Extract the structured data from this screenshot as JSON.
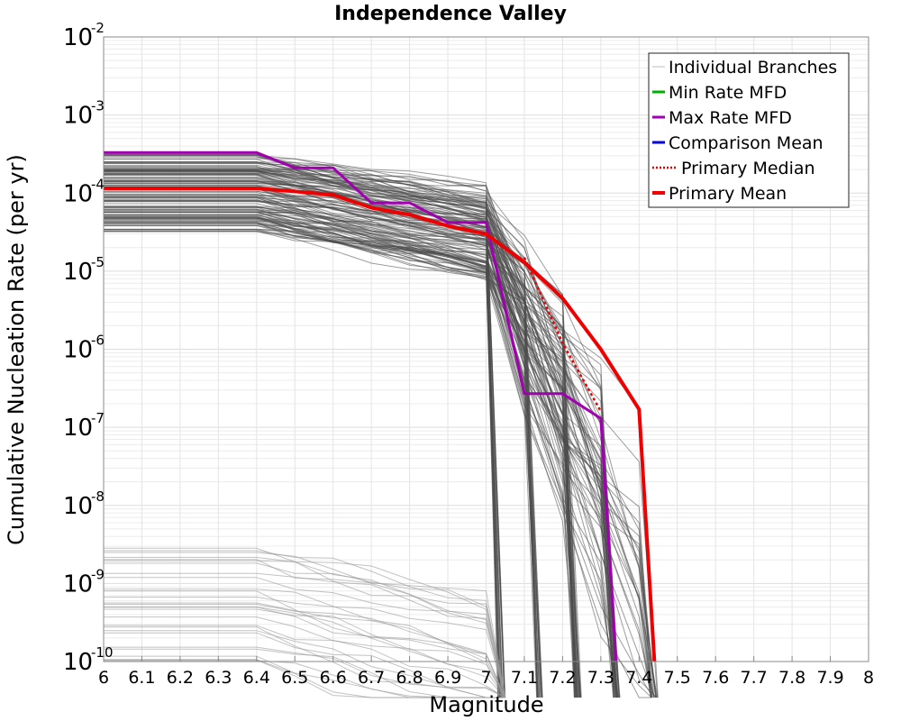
{
  "chart_data": {
    "type": "line",
    "title": "Independence Valley",
    "xlabel": "Magnitude",
    "ylabel": "Cumulative Nucleation Rate (per yr)",
    "xlim": [
      6,
      8
    ],
    "ylim": [
      1e-10,
      0.01
    ],
    "yscale": "log",
    "grid": true,
    "legend_position": "top-right",
    "x_ticks": [
      "6",
      "6.1",
      "6.2",
      "6.3",
      "6.4",
      "6.5",
      "6.6",
      "6.7",
      "6.8",
      "6.9",
      "7",
      "7.1",
      "7.2",
      "7.3",
      "7.4",
      "7.5",
      "7.6",
      "7.7",
      "7.8",
      "7.9",
      "8"
    ],
    "y_ticks": [
      {
        "base": "10",
        "exp": "-10",
        "value": 1e-10
      },
      {
        "base": "10",
        "exp": "-9",
        "value": 1e-09
      },
      {
        "base": "10",
        "exp": "-8",
        "value": 1e-08
      },
      {
        "base": "10",
        "exp": "-7",
        "value": 1e-07
      },
      {
        "base": "10",
        "exp": "-6",
        "value": 1e-06
      },
      {
        "base": "10",
        "exp": "-5",
        "value": 1e-05
      },
      {
        "base": "10",
        "exp": "-4",
        "value": 0.0001
      },
      {
        "base": "10",
        "exp": "-3",
        "value": 0.001
      },
      {
        "base": "10",
        "exp": "-2",
        "value": 0.01
      }
    ],
    "series": [
      {
        "name": "Individual Branches",
        "color": "#4d4d4d",
        "style": "thin",
        "note_values": "representative sample of many overlapping branch curves"
      },
      {
        "name": "Min Rate MFD",
        "color": "#00b000",
        "x": [],
        "y": []
      },
      {
        "name": "Max Rate MFD",
        "color": "#a000b0",
        "x": [
          6.0,
          6.4,
          6.5,
          6.6,
          6.7,
          6.8,
          6.9,
          7.0,
          7.1,
          7.2,
          7.3,
          7.34
        ],
        "y": [
          0.00033,
          0.00033,
          0.00021,
          0.00021,
          7.5e-05,
          7.5e-05,
          4.2e-05,
          4.2e-05,
          2.7e-07,
          2.7e-07,
          1.3e-07,
          1e-10
        ]
      },
      {
        "name": "Comparison Mean",
        "color": "#0000dd",
        "x": [],
        "y": []
      },
      {
        "name": "Primary Median",
        "color": "#ee0000",
        "dashed": true,
        "x": [
          7.1,
          7.2,
          7.3
        ],
        "y": [
          1.5e-05,
          1.2e-06,
          1.6e-07
        ]
      },
      {
        "name": "Primary Mean",
        "color": "#ee0000",
        "x": [
          6.0,
          6.4,
          6.5,
          6.6,
          6.7,
          6.8,
          6.9,
          7.0,
          7.1,
          7.2,
          7.3,
          7.4,
          7.44
        ],
        "y": [
          0.000115,
          0.000115,
          0.000105,
          9.5e-05,
          6.5e-05,
          5.3e-05,
          3.8e-05,
          3e-05,
          1.3e-05,
          4.5e-06,
          1e-06,
          1.7e-07,
          1e-10
        ]
      }
    ],
    "legend": [
      {
        "label": "Individual Branches",
        "color": "#bbbbbb",
        "style": "thin"
      },
      {
        "label": "Min Rate MFD",
        "color": "#00b000",
        "style": "solid"
      },
      {
        "label": "Max Rate MFD",
        "color": "#a000b0",
        "style": "solid"
      },
      {
        "label": "Comparison Mean",
        "color": "#0000dd",
        "style": "solid"
      },
      {
        "label": "Primary Median",
        "color": "#ee0000",
        "style": "dotted"
      },
      {
        "label": "Primary Mean",
        "color": "#ee0000",
        "style": "thick"
      }
    ]
  }
}
